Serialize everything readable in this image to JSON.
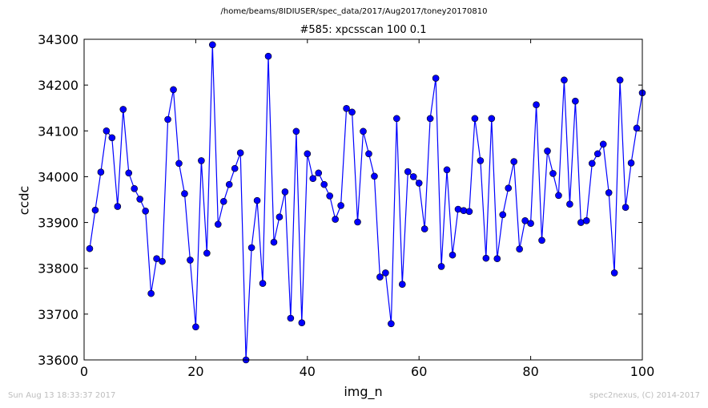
{
  "suptitle": "/home/beams/8IDIUSER/spec_data/2017/Aug2017/toney20170810",
  "footer": {
    "timestamp": "Sun Aug 13 18:33:37 2017",
    "credit": "spec2nexus, (C) 2014-2017"
  },
  "chart_data": {
    "type": "line",
    "title": "#585: xpcsscan 100 0.1",
    "xlabel": "img_n",
    "ylabel": "ccdc",
    "xlim": [
      0,
      100
    ],
    "ylim": [
      33600,
      34300
    ],
    "xticks": [
      0,
      20,
      40,
      60,
      80,
      100
    ],
    "yticks": [
      33600,
      33700,
      33800,
      33900,
      34000,
      34100,
      34200,
      34300
    ],
    "grid": false,
    "line_color": "#0000ff",
    "marker": "circle",
    "series": [
      {
        "x": [
          1,
          2,
          3,
          4,
          5,
          6,
          7,
          8,
          9,
          10,
          11,
          12,
          13,
          14,
          15,
          16,
          17,
          18,
          19,
          20,
          21,
          22,
          23,
          24,
          25,
          26,
          27,
          28,
          29,
          30,
          31,
          32,
          33,
          34,
          35,
          36,
          37,
          38,
          39,
          40,
          41,
          42,
          43,
          44,
          45,
          46,
          47,
          48,
          49,
          50,
          51,
          52,
          53,
          54,
          55,
          56,
          57,
          58,
          59,
          60,
          61,
          62,
          63,
          64,
          65,
          66,
          67,
          68,
          69,
          70,
          71,
          72,
          73,
          74,
          75,
          76,
          77,
          78,
          79,
          80,
          81,
          82,
          83,
          84,
          85,
          86,
          87,
          88,
          89,
          90,
          91,
          92,
          93,
          94,
          95,
          96,
          97,
          98,
          99,
          100
        ],
        "y": [
          33843,
          33927,
          34010,
          34100,
          34085,
          33935,
          34147,
          34008,
          33974,
          33951,
          33925,
          33745,
          33821,
          33815,
          34125,
          34190,
          34029,
          33963,
          33818,
          33672,
          34035,
          33833,
          34288,
          33896,
          33946,
          33983,
          34018,
          34052,
          33600,
          33845,
          33948,
          33767,
          34263,
          33857,
          33912,
          33967,
          33691,
          34099,
          33681,
          34050,
          33996,
          34008,
          33983,
          33958,
          33907,
          33937,
          34149,
          34141,
          33901,
          34099,
          34050,
          34001,
          33781,
          33790,
          33679,
          34127,
          33765,
          34011,
          34000,
          33986,
          33886,
          34127,
          34215,
          33804,
          34015,
          33829,
          33929,
          33926,
          33924,
          34127,
          34035,
          33822,
          34127,
          33821,
          33917,
          33975,
          34033,
          33842,
          33904,
          33898,
          34157,
          33861,
          34056,
          34007,
          33959,
          34211,
          33940,
          34165,
          33900,
          33904,
          34029,
          34050,
          34071,
          33965,
          33790,
          34211,
          33933,
          34030,
          34106,
          34183
        ]
      }
    ]
  }
}
